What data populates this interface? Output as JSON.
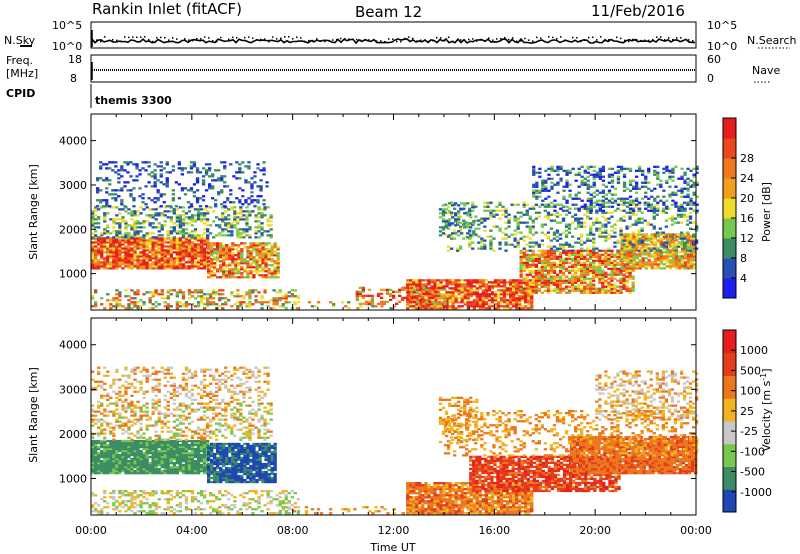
{
  "header": {
    "station": "Rankin Inlet (fitACF)",
    "beam": "Beam 12",
    "date": "11/Feb/2016"
  },
  "status_panels": {
    "nsky_label": "N.Sky",
    "nsearch_label": "N.Search",
    "noise_ticks_top": "10^5",
    "noise_ticks_bottom": "10^0",
    "freq_label_1": "Freq.",
    "freq_label_2": "[MHz]",
    "freq_ticks": [
      "18",
      "8"
    ],
    "nave_label": "Nave",
    "nave_ticks": [
      "60",
      "0"
    ],
    "cpid_label": "CPID",
    "cpid_value": "themis 3300"
  },
  "chart_data": [
    {
      "type": "heatmap",
      "name": "power",
      "xlabel": "",
      "ylabel": "Slant Range [km]",
      "xlim": [
        0,
        24
      ],
      "ylim": [
        180,
        4600
      ],
      "yticks": [
        1000,
        2000,
        3000,
        4000
      ],
      "colorbar": {
        "label": "Power [dB]",
        "ticks": [
          "4",
          "8",
          "12",
          "16",
          "20",
          "24",
          "28"
        ],
        "colors": [
          "#1e1ef0",
          "#2850b4",
          "#3c8c64",
          "#78c850",
          "#f0dc28",
          "#f0a01e",
          "#f0781e",
          "#eb461e",
          "#e61e1e"
        ]
      }
    },
    {
      "type": "heatmap",
      "name": "velocity",
      "xlabel": "Time UT",
      "ylabel": "Slant Range [km]",
      "xlim": [
        0,
        24
      ],
      "ylim": [
        180,
        4600
      ],
      "yticks": [
        1000,
        2000,
        3000,
        4000
      ],
      "xticks": [
        "00:00",
        "04:00",
        "08:00",
        "12:00",
        "16:00",
        "20:00",
        "00:00"
      ],
      "colorbar": {
        "label": "Velocity [m s",
        "label_sup": "-1",
        "label_end": "]",
        "ticks": [
          "1000",
          "500",
          "100",
          "25",
          "-25",
          "-100",
          "-500",
          "-1000"
        ],
        "colors": [
          "#1e46b4",
          "#3c8c64",
          "#78c850",
          "#c8c8c8",
          "#f0b41e",
          "#eb781e",
          "#e63c1e",
          "#e61e1e"
        ]
      }
    }
  ]
}
